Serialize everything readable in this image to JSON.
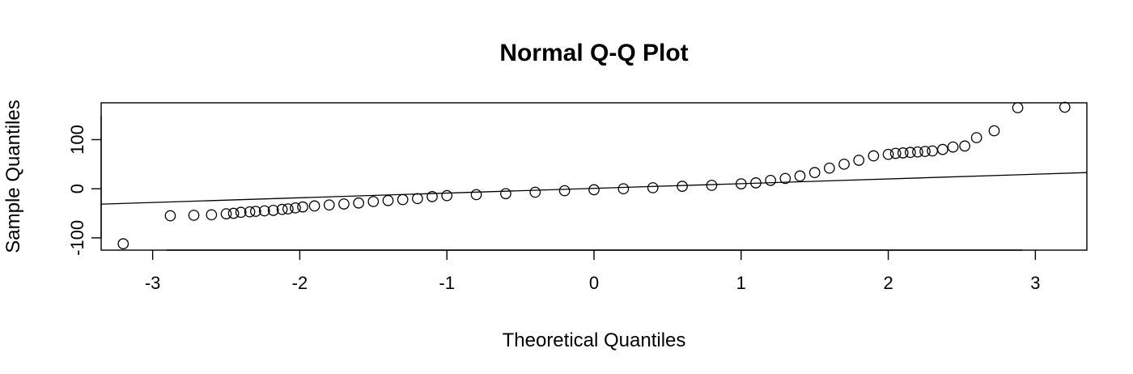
{
  "chart_data": {
    "type": "scatter",
    "title": "Normal Q-Q Plot",
    "xlabel": "Theoretical Quantiles",
    "ylabel": "Sample Quantiles",
    "x_ticks": [
      "-3",
      "-2",
      "-1",
      "0",
      "1",
      "2",
      "3"
    ],
    "y_ticks": [
      "-100",
      "0",
      "100"
    ],
    "xlim": [
      -3.35,
      3.35
    ],
    "ylim": [
      -125,
      175
    ],
    "grid": false,
    "marker": "open-circle",
    "reference_line": {
      "intercept": 0.8,
      "slope": 9.6
    },
    "points": [
      [
        -3.2,
        -112
      ],
      [
        -2.88,
        -55
      ],
      [
        -2.72,
        -54
      ],
      [
        -2.6,
        -53
      ],
      [
        -2.5,
        -51
      ],
      [
        -2.45,
        -50
      ],
      [
        -2.4,
        -48
      ],
      [
        -2.34,
        -47
      ],
      [
        -2.3,
        -46
      ],
      [
        -2.24,
        -45
      ],
      [
        -2.18,
        -44
      ],
      [
        -2.12,
        -42
      ],
      [
        -2.08,
        -41
      ],
      [
        -2.03,
        -39
      ],
      [
        -1.98,
        -37
      ],
      [
        -1.9,
        -35
      ],
      [
        -1.8,
        -33
      ],
      [
        -1.7,
        -31
      ],
      [
        -1.6,
        -29
      ],
      [
        -1.5,
        -26
      ],
      [
        -1.4,
        -24
      ],
      [
        -1.3,
        -22
      ],
      [
        -1.2,
        -20
      ],
      [
        -1.1,
        -16
      ],
      [
        -1.0,
        -14
      ],
      [
        -0.8,
        -12
      ],
      [
        -0.6,
        -10
      ],
      [
        -0.4,
        -7
      ],
      [
        -0.2,
        -4
      ],
      [
        0.0,
        -2
      ],
      [
        0.2,
        0
      ],
      [
        0.4,
        2
      ],
      [
        0.6,
        5
      ],
      [
        0.8,
        7
      ],
      [
        1.0,
        10
      ],
      [
        1.1,
        12
      ],
      [
        1.2,
        17
      ],
      [
        1.3,
        21
      ],
      [
        1.4,
        26
      ],
      [
        1.5,
        33
      ],
      [
        1.6,
        42
      ],
      [
        1.7,
        50
      ],
      [
        1.8,
        58
      ],
      [
        1.9,
        67
      ],
      [
        2.0,
        70
      ],
      [
        2.05,
        72
      ],
      [
        2.1,
        73
      ],
      [
        2.15,
        74
      ],
      [
        2.2,
        75
      ],
      [
        2.25,
        76
      ],
      [
        2.3,
        77
      ],
      [
        2.37,
        80
      ],
      [
        2.44,
        85
      ],
      [
        2.52,
        87
      ],
      [
        2.6,
        104
      ],
      [
        2.72,
        118
      ],
      [
        2.88,
        165
      ],
      [
        3.2,
        166
      ]
    ]
  }
}
